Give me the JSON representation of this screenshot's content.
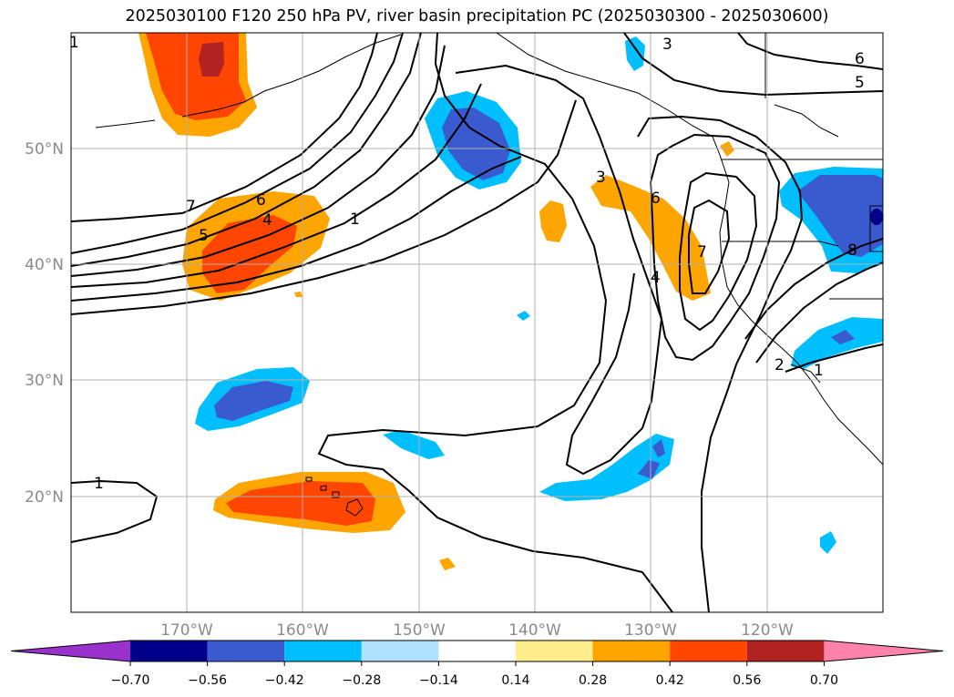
{
  "title": "2025030100 F120 250 hPa PV, river basin precipitation PC (2025030300 - 2025030600)",
  "lat_labels": [
    "50°N",
    "40°N",
    "30°N",
    "20°N"
  ],
  "lon_labels": [
    "170°W",
    "160°W",
    "150°W",
    "140°W",
    "130°W",
    "120°W"
  ],
  "map_extent": {
    "lon_min": -180,
    "lon_max": -110,
    "lat_min": 10,
    "lat_max": 60
  },
  "pv_contour_labels": [
    "1",
    "1",
    "1",
    "1",
    "2",
    "3",
    "3",
    "4",
    "4",
    "5",
    "5",
    "6",
    "6",
    "6",
    "7",
    "7",
    "8"
  ],
  "colorbar": {
    "tick_labels": [
      "−0.70",
      "−0.56",
      "−0.42",
      "−0.28",
      "−0.14",
      "0.14",
      "0.28",
      "0.42",
      "0.56",
      "0.70"
    ],
    "colors": [
      "#9932cc",
      "#00008b",
      "#3a5bd0",
      "#00bfff",
      "#b0e2ff",
      "#ffffff",
      "#ffec8b",
      "#ffa500",
      "#ff4500",
      "#b22222",
      "#ff82ab"
    ]
  }
}
